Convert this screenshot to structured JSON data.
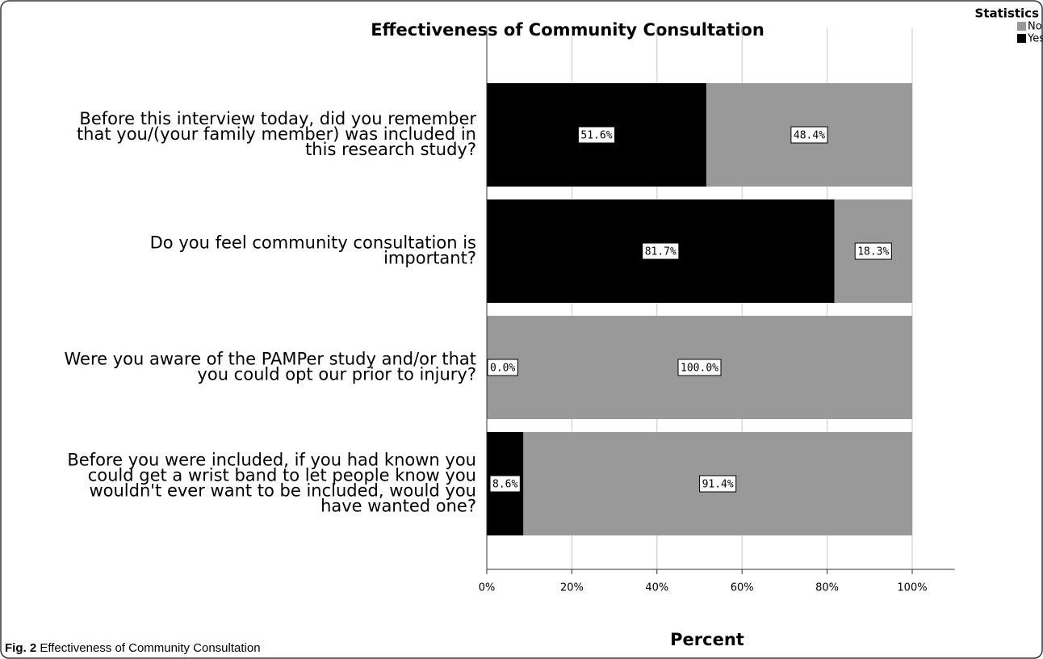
{
  "chart_data": {
    "type": "stacked-bar-horizontal",
    "title": "Effectiveness of Community Consultation",
    "x_label": "Percent",
    "categories": [
      [
        "Before this interview today, did you remember",
        "that you/(your family member) was included in",
        "this research study?"
      ],
      [
        "Do you feel community consultation is",
        "important?"
      ],
      [
        "Were you aware of the PAMPer study and/or that",
        "you could opt our prior to injury?"
      ],
      [
        "Before you were included, if you had known you",
        "could get a wrist band to let people know you",
        "wouldn't ever want to be included, would you",
        "have wanted one?"
      ]
    ],
    "series": [
      {
        "name": "Yes",
        "color": "#000000",
        "values": [
          51.6,
          81.7,
          0.0,
          8.6
        ],
        "value_labels": [
          "51.6%",
          "81.7%",
          "0.0%",
          "8.6%"
        ]
      },
      {
        "name": "No",
        "color": "#999999",
        "values": [
          48.4,
          18.3,
          100.0,
          91.4
        ],
        "value_labels": [
          "48.4%",
          "18.3%",
          "100.0%",
          "91.4%"
        ]
      }
    ],
    "legend_title": "Statistics",
    "legend_order": [
      "No",
      "Yes"
    ],
    "legend_position": "top-right",
    "xlim": [
      0,
      110
    ],
    "xticks": [
      {
        "value": 0,
        "label": "0%"
      },
      {
        "value": 20,
        "label": "20%"
      },
      {
        "value": 40,
        "label": "40%"
      },
      {
        "value": 60,
        "label": "60%"
      },
      {
        "value": 80,
        "label": "80%"
      },
      {
        "value": 100,
        "label": "100%"
      }
    ],
    "grid": true
  },
  "caption": {
    "label": "Fig. 2",
    "text": "Effectiveness of Community Consultation"
  }
}
